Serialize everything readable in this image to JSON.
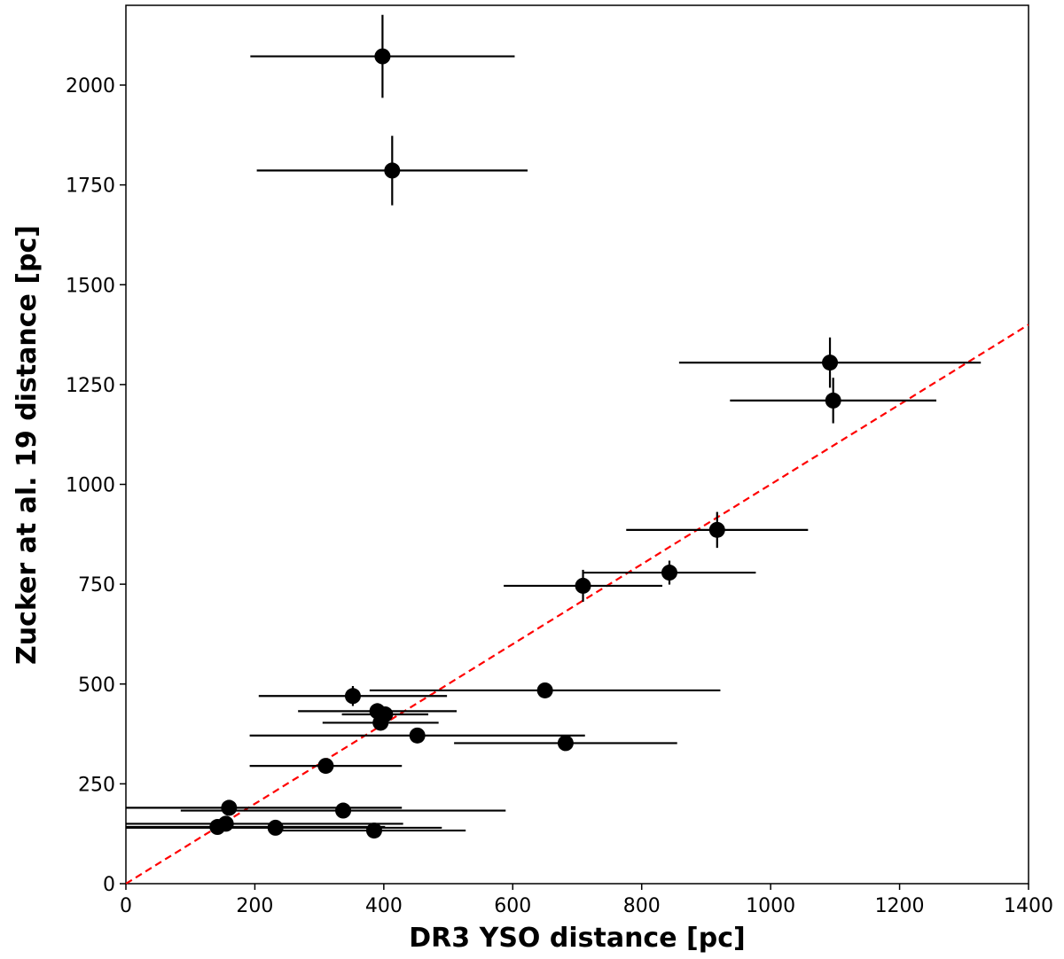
{
  "chart_data": {
    "type": "scatter",
    "title": "",
    "xlabel": "DR3 YSO distance [pc]",
    "ylabel": "Zucker at al. 19 distance [pc]",
    "xlim": [
      0,
      1400
    ],
    "ylim": [
      0,
      2200
    ],
    "xticks": [
      0,
      200,
      400,
      600,
      800,
      1000,
      1200,
      1400
    ],
    "yticks": [
      0,
      250,
      500,
      750,
      1000,
      1250,
      1500,
      1750,
      2000
    ],
    "grid": false,
    "legend": "none",
    "marker_color": "#000000",
    "reference_line": {
      "type": "1:1",
      "style": "dashed",
      "color": "#ff0000",
      "x": [
        0,
        1400
      ],
      "y": [
        0,
        1400
      ]
    },
    "series": [
      {
        "points": [
          {
            "x": 398,
            "y": 2072,
            "xerr": 205,
            "yerr": 104
          },
          {
            "x": 413,
            "y": 1786,
            "xerr": 210,
            "yerr": 87
          },
          {
            "x": 1092,
            "y": 1305,
            "xerr": 234,
            "yerr": 63
          },
          {
            "x": 1097,
            "y": 1210,
            "xerr": 160,
            "yerr": 57
          },
          {
            "x": 917,
            "y": 886,
            "xerr": 141,
            "yerr": 45
          },
          {
            "x": 843,
            "y": 779,
            "xerr": 134,
            "yerr": 30
          },
          {
            "x": 709,
            "y": 746,
            "xerr": 123,
            "yerr": 40
          },
          {
            "x": 650,
            "y": 484,
            "xerr": 272,
            "yerr": 15
          },
          {
            "x": 352,
            "y": 470,
            "xerr": 146,
            "yerr": 25
          },
          {
            "x": 390,
            "y": 432,
            "xerr": 123,
            "yerr": 20
          },
          {
            "x": 402,
            "y": 424,
            "xerr": 67,
            "yerr": 15
          },
          {
            "x": 395,
            "y": 403,
            "xerr": 90,
            "yerr": 15
          },
          {
            "x": 452,
            "y": 371,
            "xerr": 260,
            "yerr": 12
          },
          {
            "x": 682,
            "y": 352,
            "xerr": 173,
            "yerr": 10
          },
          {
            "x": 310,
            "y": 295,
            "xerr": 118,
            "yerr": 12
          },
          {
            "x": 160,
            "y": 190,
            "xerr": 268,
            "yerr": 12
          },
          {
            "x": 337,
            "y": 183,
            "xerr": 252,
            "yerr": 10
          },
          {
            "x": 155,
            "y": 150,
            "xerr": 275,
            "yerr": 8
          },
          {
            "x": 142,
            "y": 142,
            "xerr": 260,
            "yerr": 8
          },
          {
            "x": 232,
            "y": 140,
            "xerr": 258,
            "yerr": 8
          },
          {
            "x": 385,
            "y": 133,
            "xerr": 142,
            "yerr": 8
          }
        ]
      }
    ]
  }
}
